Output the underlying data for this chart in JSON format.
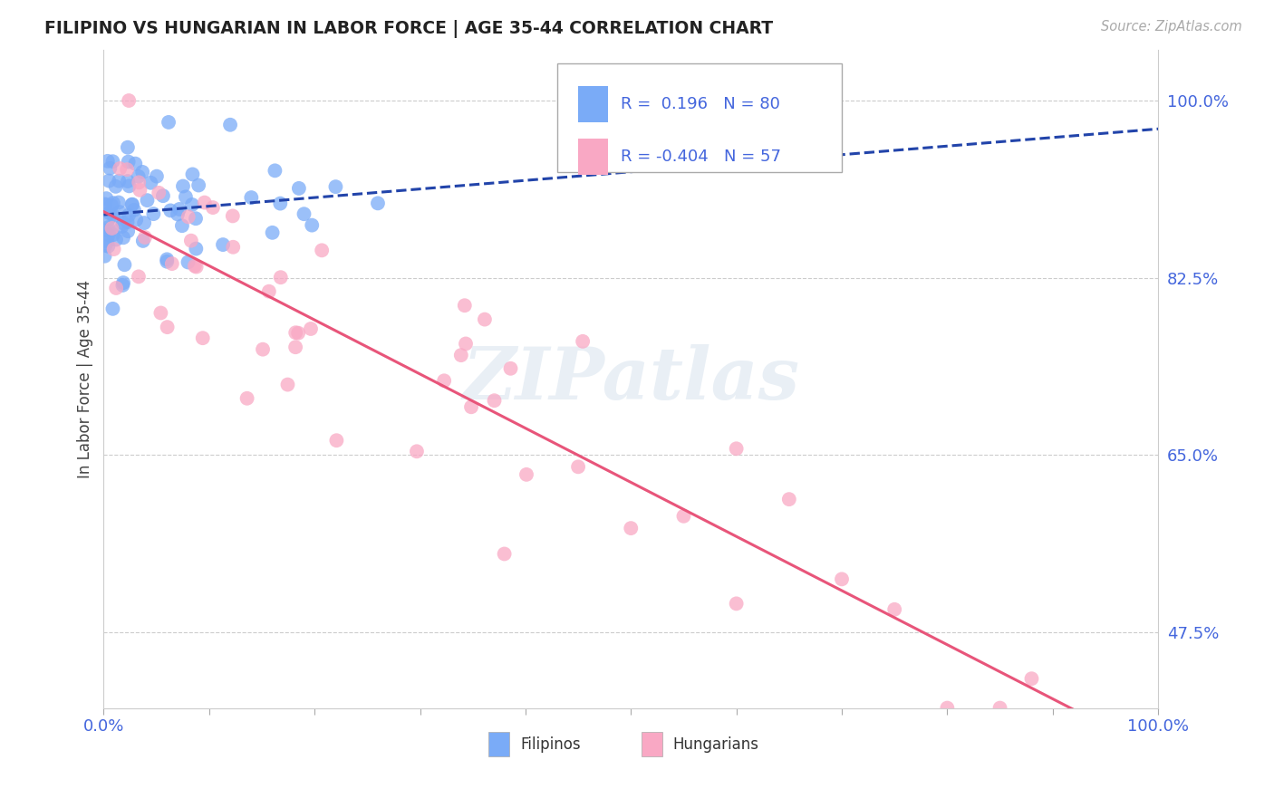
{
  "title": "FILIPINO VS HUNGARIAN IN LABOR FORCE | AGE 35-44 CORRELATION CHART",
  "source": "Source: ZipAtlas.com",
  "ylabel": "In Labor Force | Age 35-44",
  "xlim": [
    0.0,
    1.0
  ],
  "ylim": [
    0.4,
    1.05
  ],
  "ytick_vals": [
    0.475,
    0.65,
    0.825,
    1.0
  ],
  "ytick_labels": [
    "47.5%",
    "65.0%",
    "82.5%",
    "100.0%"
  ],
  "xtick_vals": [
    0.0,
    1.0
  ],
  "xtick_labels": [
    "0.0%",
    "100.0%"
  ],
  "filipino_color": "#7aabf7",
  "hungarian_color": "#f9a8c4",
  "trend_filipino_color": "#2244aa",
  "trend_hungarian_color": "#e8557a",
  "R_filipino": 0.196,
  "N_filipino": 80,
  "R_hungarian": -0.404,
  "N_hungarian": 57,
  "watermark": "ZIPatlas",
  "background_color": "#ffffff",
  "grid_color": "#cccccc",
  "tick_color": "#4466dd",
  "title_color": "#222222",
  "source_color": "#aaaaaa",
  "legend_text_color": "#4466dd"
}
